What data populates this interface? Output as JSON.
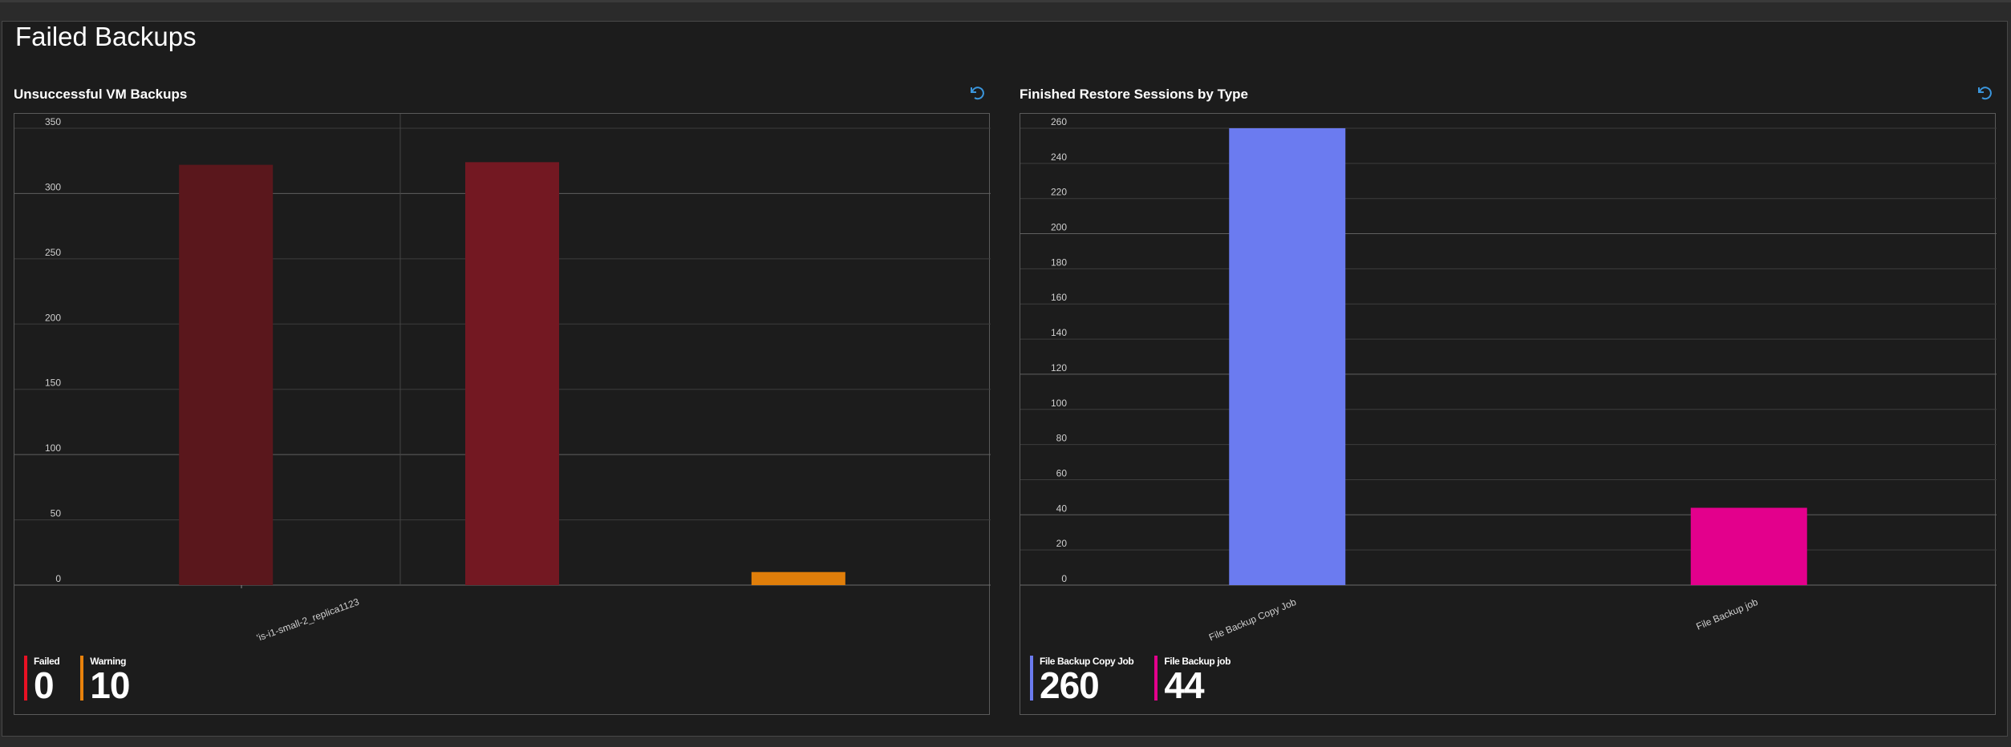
{
  "dashboard": {
    "title": "Failed Backups"
  },
  "charts": {
    "vm": {
      "title": "Unsuccessful VM Backups"
    },
    "restore": {
      "title": "Finished Restore Sessions by Type"
    }
  },
  "colors": {
    "failed": "#e81123",
    "warning": "#e8820c",
    "bar_dark_red": "#5a171c",
    "bar_red": "#731822",
    "bar_orange": "#e07e0a",
    "copy_job": "#6b7bf0",
    "backup_job": "#e3008c"
  },
  "icons": {
    "refresh": "refresh-icon"
  },
  "chart_data": [
    {
      "type": "bar",
      "title": "Unsuccessful VM Backups",
      "categories": [
        "",
        "",
        ""
      ],
      "category_labels": [
        {
          "at": 0.5,
          "text": "'is-i1-small-2_replica1123"
        }
      ],
      "values": [
        322,
        324,
        10
      ],
      "bar_colors": [
        "#5a171c",
        "#731822",
        "#e07e0a"
      ],
      "ylim": [
        0,
        350
      ],
      "yticks": [
        0,
        50,
        100,
        150,
        200,
        250,
        300,
        350
      ],
      "grid": true,
      "legend": [
        {
          "label": "Failed",
          "value": "0",
          "color": "#e81123"
        },
        {
          "label": "Warning",
          "value": "10",
          "color": "#e8820c"
        }
      ]
    },
    {
      "type": "bar",
      "title": "Finished Restore Sessions by Type",
      "categories": [
        "File Backup Copy Job",
        "File Backup job"
      ],
      "values": [
        260,
        44
      ],
      "bar_colors": [
        "#6b7bf0",
        "#e3008c"
      ],
      "ylim": [
        0,
        260
      ],
      "yticks": [
        0,
        20,
        40,
        60,
        80,
        100,
        120,
        140,
        160,
        180,
        200,
        220,
        240,
        260
      ],
      "grid": true,
      "legend": [
        {
          "label": "File Backup Copy Job",
          "value": "260",
          "color": "#6b7bf0"
        },
        {
          "label": "File Backup job",
          "value": "44",
          "color": "#e3008c"
        }
      ]
    }
  ]
}
